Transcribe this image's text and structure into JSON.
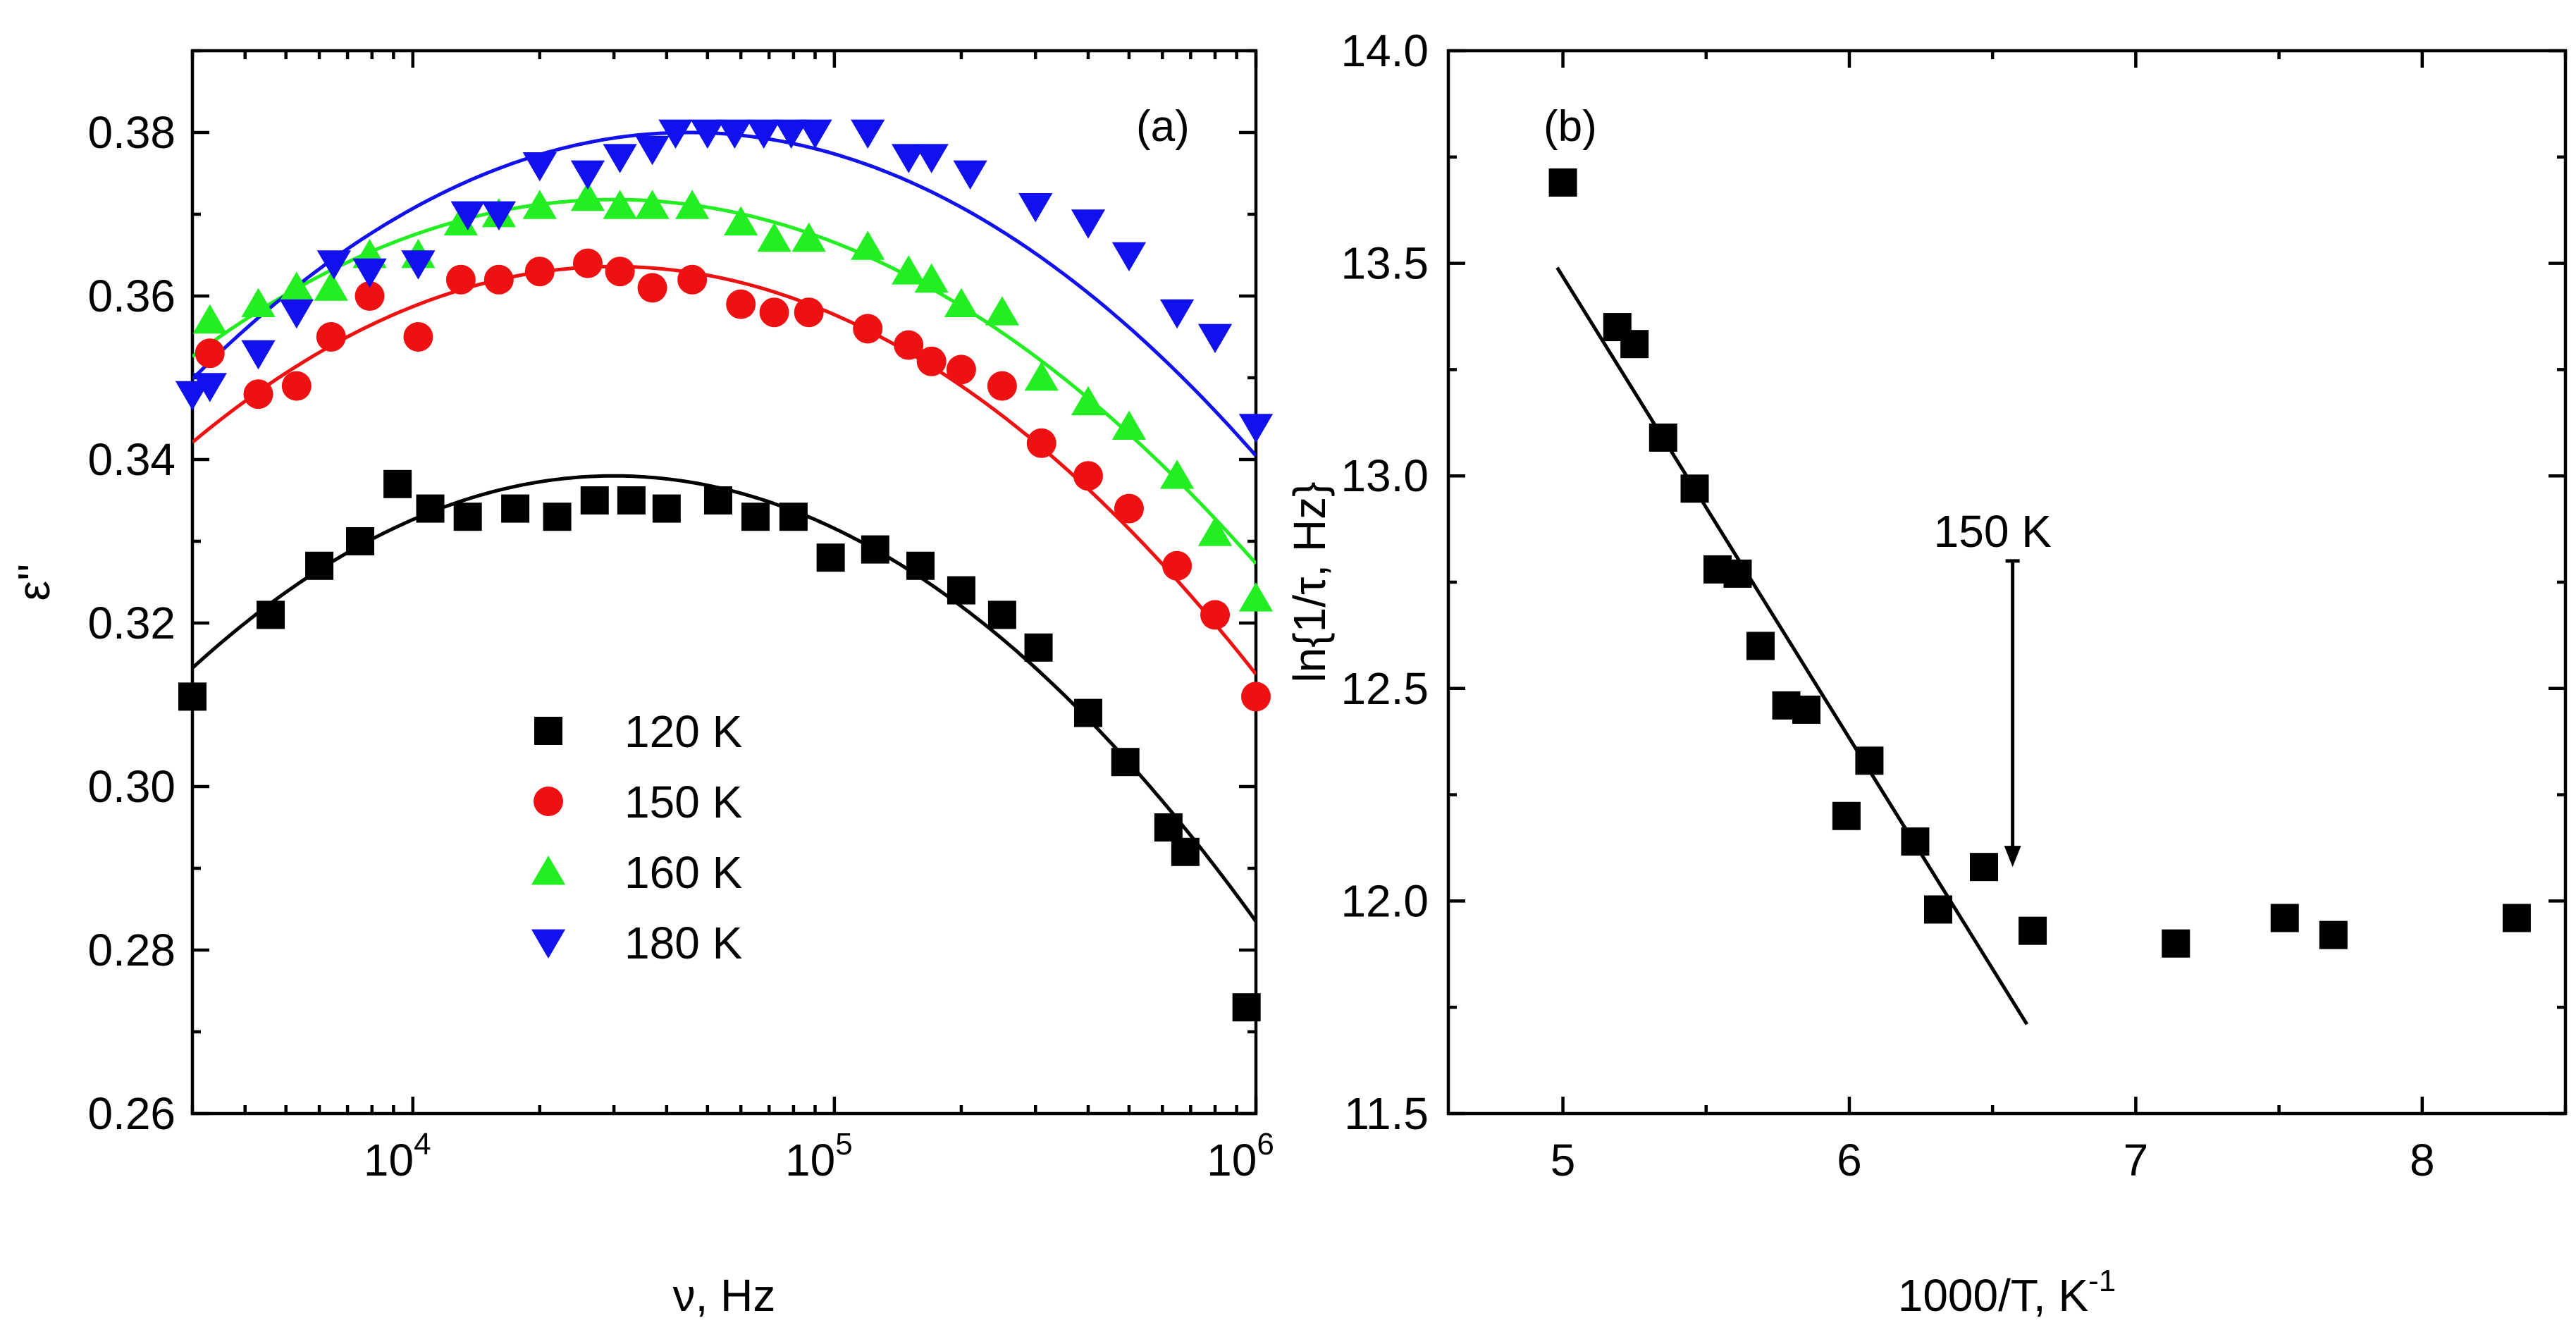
{
  "colors": {
    "black": "#000000",
    "red": "#ee1111",
    "green": "#22ee22",
    "blue": "#1111ee"
  },
  "chart_data": [
    {
      "panel_label": "(a)",
      "type": "scatter",
      "xlabel": "ν, Hz",
      "ylabel": "ε''",
      "xscale": "log",
      "xlim": [
        3000,
        1000000
      ],
      "ylim": [
        0.26,
        0.39
      ],
      "x_ticks": [
        {
          "value": 10000,
          "base": "10",
          "exp": "4"
        },
        {
          "value": 100000,
          "base": "10",
          "exp": "5"
        },
        {
          "value": 1000000,
          "base": "10",
          "exp": "6"
        }
      ],
      "y_ticks": [
        {
          "value": 0.26,
          "label": "0.26"
        },
        {
          "value": 0.28,
          "label": "0.28"
        },
        {
          "value": 0.3,
          "label": "0.30"
        },
        {
          "value": 0.32,
          "label": "0.32"
        },
        {
          "value": 0.34,
          "label": "0.34"
        },
        {
          "value": 0.36,
          "label": "0.36"
        },
        {
          "value": 0.38,
          "label": "0.38"
        }
      ],
      "legend_position": "bottom-left",
      "series": [
        {
          "name": "120 K",
          "marker": "square",
          "color": "#000000",
          "fit": {
            "peak_x": 30000,
            "peak_y": 0.338,
            "curvature": 0.0235
          },
          "points": [
            [
              3000,
              0.311
            ],
            [
              4600,
              0.321
            ],
            [
              6000,
              0.327
            ],
            [
              7500,
              0.33
            ],
            [
              9200,
              0.337
            ],
            [
              11000,
              0.334
            ],
            [
              13500,
              0.333
            ],
            [
              17500,
              0.334
            ],
            [
              22000,
              0.333
            ],
            [
              27000,
              0.335
            ],
            [
              33000,
              0.335
            ],
            [
              40000,
              0.334
            ],
            [
              53000,
              0.335
            ],
            [
              65000,
              0.333
            ],
            [
              80000,
              0.333
            ],
            [
              98000,
              0.328
            ],
            [
              125000,
              0.329
            ],
            [
              160000,
              0.327
            ],
            [
              200000,
              0.324
            ],
            [
              250000,
              0.321
            ],
            [
              305000,
              0.317
            ],
            [
              400000,
              0.309
            ],
            [
              490000,
              0.303
            ],
            [
              620000,
              0.295
            ],
            [
              680000,
              0.292
            ],
            [
              950000,
              0.273
            ]
          ]
        },
        {
          "name": "150 K",
          "marker": "circle",
          "color": "#ee1111",
          "fit": {
            "peak_x": 30000,
            "peak_y": 0.3636,
            "curvature": 0.0215
          },
          "points": [
            [
              3300,
              0.353
            ],
            [
              4300,
              0.348
            ],
            [
              5300,
              0.349
            ],
            [
              6400,
              0.355
            ],
            [
              7900,
              0.36
            ],
            [
              10300,
              0.355
            ],
            [
              13000,
              0.362
            ],
            [
              16000,
              0.362
            ],
            [
              20000,
              0.363
            ],
            [
              26000,
              0.364
            ],
            [
              31000,
              0.363
            ],
            [
              37000,
              0.361
            ],
            [
              46000,
              0.362
            ],
            [
              60000,
              0.359
            ],
            [
              72000,
              0.358
            ],
            [
              87000,
              0.358
            ],
            [
              120000,
              0.356
            ],
            [
              150000,
              0.354
            ],
            [
              170000,
              0.352
            ],
            [
              200000,
              0.351
            ],
            [
              250000,
              0.349
            ],
            [
              310000,
              0.342
            ],
            [
              400000,
              0.338
            ],
            [
              500000,
              0.334
            ],
            [
              650000,
              0.327
            ],
            [
              800000,
              0.321
            ],
            [
              1000000,
              0.311
            ]
          ]
        },
        {
          "name": "160 K",
          "marker": "triangle-up",
          "color": "#22ee22",
          "fit": {
            "peak_x": 30000,
            "peak_y": 0.3718,
            "curvature": 0.0192
          },
          "points": [
            [
              3300,
              0.357
            ],
            [
              4300,
              0.359
            ],
            [
              5300,
              0.361
            ],
            [
              6400,
              0.361
            ],
            [
              7900,
              0.365
            ],
            [
              10300,
              0.365
            ],
            [
              13000,
              0.369
            ],
            [
              16000,
              0.37
            ],
            [
              20000,
              0.371
            ],
            [
              26000,
              0.372
            ],
            [
              31000,
              0.371
            ],
            [
              37000,
              0.371
            ],
            [
              46000,
              0.371
            ],
            [
              60000,
              0.369
            ],
            [
              72000,
              0.367
            ],
            [
              87000,
              0.367
            ],
            [
              120000,
              0.366
            ],
            [
              150000,
              0.363
            ],
            [
              170000,
              0.362
            ],
            [
              200000,
              0.359
            ],
            [
              250000,
              0.358
            ],
            [
              310000,
              0.35
            ],
            [
              400000,
              0.347
            ],
            [
              500000,
              0.344
            ],
            [
              650000,
              0.338
            ],
            [
              800000,
              0.331
            ],
            [
              1000000,
              0.323
            ]
          ]
        },
        {
          "name": "180 K",
          "marker": "triangle-down",
          "color": "#1111ee",
          "fit": {
            "peak_x": 45000,
            "peak_y": 0.38,
            "curvature": 0.0218
          },
          "points": [
            [
              3000,
              0.348
            ],
            [
              3300,
              0.349
            ],
            [
              4300,
              0.353
            ],
            [
              5300,
              0.358
            ],
            [
              6500,
              0.364
            ],
            [
              7900,
              0.363
            ],
            [
              10300,
              0.364
            ],
            [
              13500,
              0.37
            ],
            [
              16000,
              0.37
            ],
            [
              20000,
              0.376
            ],
            [
              26000,
              0.375
            ],
            [
              31000,
              0.377
            ],
            [
              37000,
              0.378
            ],
            [
              42000,
              0.38
            ],
            [
              50000,
              0.38
            ],
            [
              58000,
              0.38
            ],
            [
              68000,
              0.38
            ],
            [
              79000,
              0.38
            ],
            [
              90000,
              0.38
            ],
            [
              120000,
              0.38
            ],
            [
              150000,
              0.377
            ],
            [
              170000,
              0.377
            ],
            [
              210000,
              0.375
            ],
            [
              300000,
              0.371
            ],
            [
              400000,
              0.369
            ],
            [
              500000,
              0.365
            ],
            [
              650000,
              0.358
            ],
            [
              800000,
              0.355
            ],
            [
              1000000,
              0.344
            ]
          ]
        }
      ]
    },
    {
      "panel_label": "(b)",
      "type": "scatter",
      "xlabel": "1000/T, K",
      "xlabel_sup": "-1",
      "ylabel": "ln{1/τ, Hz}",
      "xlim": [
        4.6,
        8.5
      ],
      "ylim": [
        11.5,
        14.0
      ],
      "x_ticks": [
        {
          "value": 5,
          "label": "5"
        },
        {
          "value": 6,
          "label": "6"
        },
        {
          "value": 7,
          "label": "7"
        },
        {
          "value": 8,
          "label": "8"
        }
      ],
      "y_ticks": [
        {
          "value": 11.5,
          "label": "11.5"
        },
        {
          "value": 12.0,
          "label": "12.0"
        },
        {
          "value": 12.5,
          "label": "12.5"
        },
        {
          "value": 13.0,
          "label": "13.0"
        },
        {
          "value": 13.5,
          "label": "13.5"
        },
        {
          "value": 14.0,
          "label": "14.0"
        }
      ],
      "series": [
        {
          "name": "data",
          "marker": "square",
          "color": "#000000",
          "points": [
            [
              5.0,
              13.69
            ],
            [
              5.19,
              13.35
            ],
            [
              5.25,
              13.31
            ],
            [
              5.35,
              13.09
            ],
            [
              5.46,
              12.97
            ],
            [
              5.54,
              12.78
            ],
            [
              5.61,
              12.77
            ],
            [
              5.69,
              12.6
            ],
            [
              5.78,
              12.46
            ],
            [
              5.85,
              12.45
            ],
            [
              5.99,
              12.2
            ],
            [
              6.07,
              12.33
            ],
            [
              6.23,
              12.14
            ],
            [
              6.31,
              11.98
            ],
            [
              6.47,
              12.08
            ],
            [
              6.64,
              11.93
            ],
            [
              7.14,
              11.9
            ],
            [
              7.52,
              11.96
            ],
            [
              7.69,
              11.92
            ],
            [
              8.33,
              11.96
            ]
          ]
        }
      ],
      "fit_line": {
        "x": [
          4.98,
          6.62
        ],
        "y": [
          13.49,
          11.71
        ]
      },
      "annotation": {
        "text": "150 K",
        "arrow_x": 6.57,
        "arrow_y_from": 12.8,
        "arrow_y_to": 12.08
      }
    }
  ]
}
